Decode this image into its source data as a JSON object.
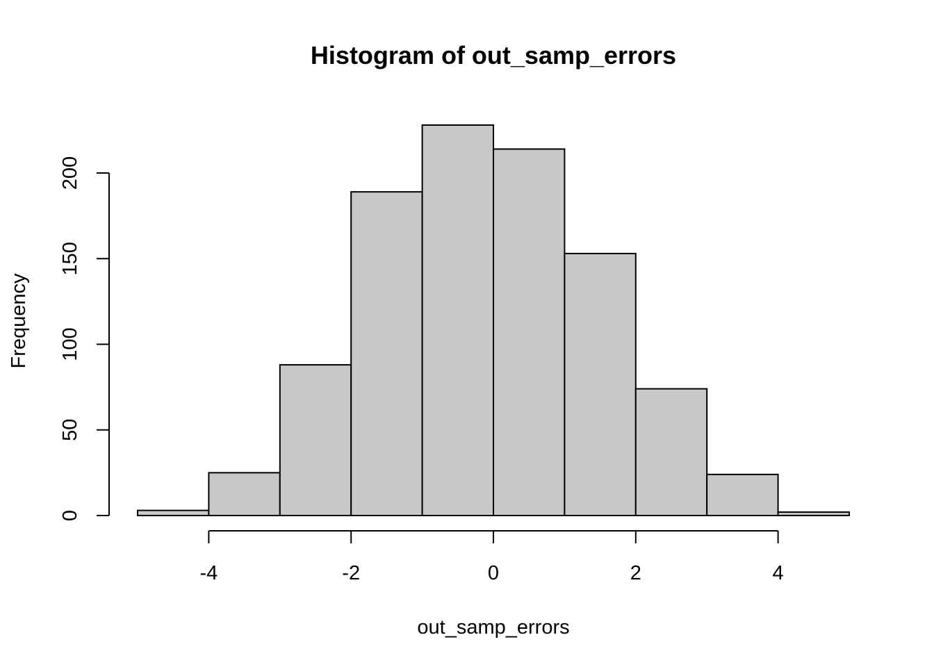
{
  "chart_data": {
    "type": "bar",
    "title": "Histogram of out_samp_errors",
    "xlabel": "out_samp_errors",
    "ylabel": "Frequency",
    "bin_edges": [
      -5,
      -4,
      -3,
      -2,
      -1,
      0,
      1,
      2,
      3,
      4,
      5
    ],
    "values": [
      3,
      25,
      88,
      189,
      228,
      214,
      153,
      74,
      24,
      2
    ],
    "xlim": [
      -5,
      5
    ],
    "ylim": [
      0,
      228
    ],
    "x_ticks": [
      -4,
      -2,
      0,
      2,
      4
    ],
    "x_tick_labels": [
      "-4",
      "-2",
      "0",
      "2",
      "4"
    ],
    "y_ticks": [
      0,
      50,
      100,
      150,
      200
    ],
    "y_tick_labels": [
      "0",
      "50",
      "100",
      "150",
      "200"
    ],
    "bar_fill": "#c8c8c8",
    "grid": false,
    "legend": "none"
  }
}
